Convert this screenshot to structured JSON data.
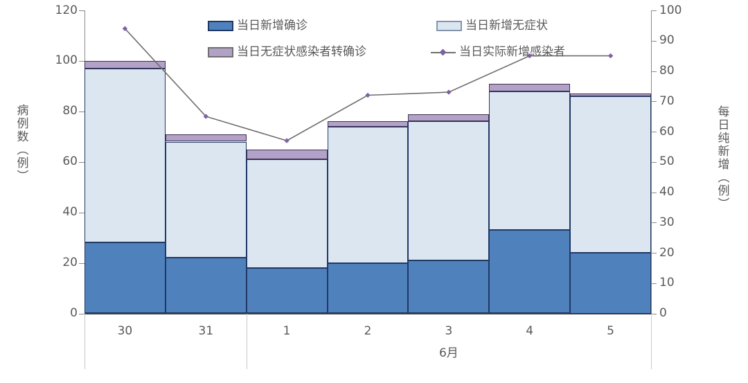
{
  "chart_data": {
    "type": "combo-stacked-bar-line",
    "categories": [
      "30",
      "31",
      "1",
      "2",
      "3",
      "4",
      "5"
    ],
    "x_groups": [
      {
        "label": "",
        "from": 0,
        "to": 2
      },
      {
        "label": "6月",
        "from": 2,
        "to": 7
      }
    ],
    "bar_series": [
      {
        "name": "当日新增确诊",
        "axis": "left",
        "values": [
          28,
          22,
          18,
          20,
          21,
          33,
          24
        ],
        "fill": "#4f81bd",
        "border": "#1f3864"
      },
      {
        "name": "当日新增无症状",
        "axis": "left",
        "values": [
          69,
          46,
          43,
          54,
          55,
          55,
          62
        ],
        "fill": "#dce6f1",
        "border": "#1f3864"
      },
      {
        "name": "当日无症状感染者转确诊",
        "axis": "left",
        "values": [
          3,
          3,
          4,
          2,
          3,
          3,
          1
        ],
        "fill": "#b2a2c7",
        "border": "#403152"
      }
    ],
    "line_series": {
      "name": "当日实际新增感染者",
      "axis": "right",
      "values": [
        94,
        65,
        57,
        72,
        73,
        85,
        85
      ],
      "color": "#6e6e6e",
      "marker_color": "#7d62a3"
    },
    "left_axis": {
      "title": "病例数（例）",
      "min": 0,
      "max": 120,
      "step": 20
    },
    "right_axis": {
      "title": "每日纯新增（例）",
      "min": 0,
      "max": 100,
      "step": 10
    },
    "stacked_totals": [
      100,
      71,
      65,
      76,
      79,
      91,
      87
    ],
    "grid": false,
    "legend_position": "top-center",
    "colors": {
      "axis_text": "#595959",
      "axis_line": "#8a8a8a",
      "baseline": "#404040",
      "group_separator": "#c9c9c9",
      "background": "#ffffff"
    }
  }
}
